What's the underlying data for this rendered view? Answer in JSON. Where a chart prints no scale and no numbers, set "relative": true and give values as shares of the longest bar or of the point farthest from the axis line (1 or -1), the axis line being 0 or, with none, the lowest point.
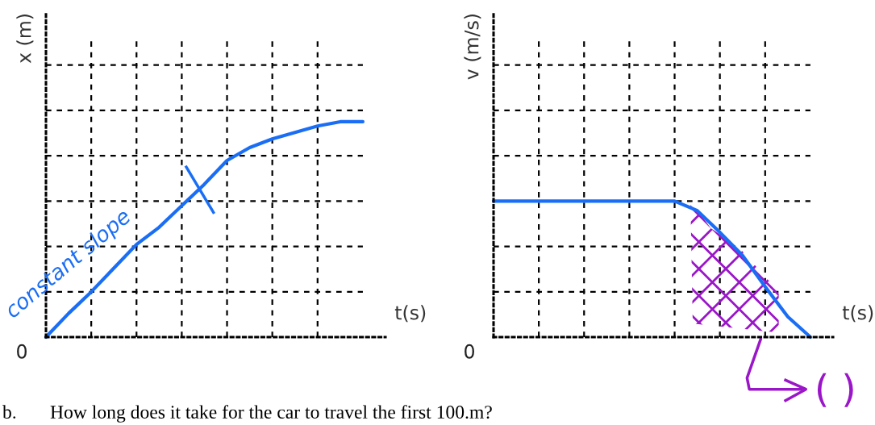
{
  "chart_data": [
    {
      "type": "line",
      "relative": true,
      "xlabel": "t(s)",
      "ylabel": "x (m)",
      "grid": true,
      "marker": "none",
      "line_style": "solid",
      "categories": [
        null,
        null,
        null,
        null,
        null,
        null,
        null,
        null,
        null,
        null,
        null,
        null,
        null,
        null,
        null
      ],
      "series": [
        {
          "color": "#1a6ef5",
          "values": [
            0.0,
            0.11,
            0.21,
            0.32,
            0.43,
            0.51,
            0.61,
            0.71,
            0.82,
            0.88,
            0.92,
            0.95,
            0.98,
            1.0,
            1.0
          ]
        }
      ],
      "annotations": [
        "0",
        "constant slope",
        "b.",
        "How long does it take for the car to travel the first 100.m?"
      ]
    },
    {
      "type": "line",
      "relative": true,
      "xlabel": "t(s)",
      "ylabel": "v (m/s)",
      "grid": true,
      "marker": "none",
      "line_style": "solid",
      "categories": [
        null,
        null,
        null,
        null,
        null,
        null,
        null,
        null,
        null,
        null,
        null,
        null,
        null,
        null,
        null
      ],
      "series": [
        {
          "color": "#1a6ef5",
          "values": [
            1.0,
            1.0,
            1.0,
            1.0,
            1.0,
            1.0,
            1.0,
            1.0,
            1.0,
            0.93,
            0.77,
            0.6,
            0.37,
            0.15,
            0.0
          ]
        }
      ],
      "annotations": [
        "0",
        "( )"
      ]
    }
  ]
}
